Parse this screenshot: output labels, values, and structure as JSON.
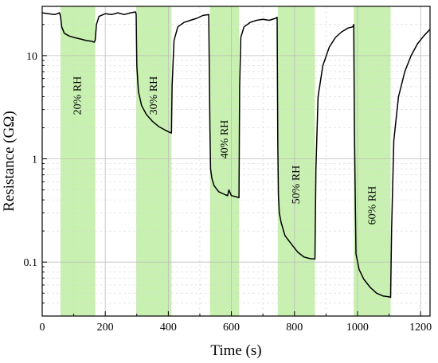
{
  "chart_data": {
    "type": "line",
    "xlabel": "Time (s)",
    "ylabel": "Resistance (GΩ)",
    "xlim": [
      0,
      1230
    ],
    "ylim": [
      0.03,
      30
    ],
    "yscale": "log",
    "grid": true,
    "x_ticks": [
      0,
      200,
      400,
      600,
      800,
      1000,
      1200
    ],
    "x_tick_labels": [
      "0",
      "200",
      "400",
      "600",
      "800",
      "1000",
      "1200"
    ],
    "y_ticks": [
      0.1,
      1,
      10
    ],
    "y_tick_labels": [
      "0.1",
      "1",
      "10"
    ],
    "band_color": "#c8f0b0",
    "line_color": "#000000",
    "bands": [
      {
        "label": "20% RH",
        "x_start": 58,
        "x_end": 168
      },
      {
        "label": "30% RH",
        "x_start": 298,
        "x_end": 410
      },
      {
        "label": "40% RH",
        "x_start": 532,
        "x_end": 624
      },
      {
        "label": "50% RH",
        "x_start": 747,
        "x_end": 865
      },
      {
        "label": "60% RH",
        "x_start": 988,
        "x_end": 1105
      }
    ],
    "series": [
      {
        "x": [
          0,
          20,
          40,
          55,
          58,
          62,
          70,
          85,
          100,
          120,
          140,
          155,
          165,
          168,
          172,
          180,
          200,
          220,
          240,
          260,
          280,
          296,
          298,
          300,
          305,
          315,
          330,
          350,
          370,
          390,
          405,
          410,
          412,
          418,
          430,
          450,
          470,
          490,
          510,
          528,
          532,
          534,
          538,
          545,
          560,
          580,
          588,
          592,
          600,
          615,
          624,
          626,
          630,
          640,
          660,
          680,
          700,
          720,
          740,
          745,
          747,
          749,
          752,
          758,
          770,
          790,
          810,
          830,
          850,
          863,
          865,
          868,
          875,
          890,
          910,
          930,
          950,
          970,
          985,
          988,
          990,
          995,
          1005,
          1020,
          1040,
          1060,
          1080,
          1100,
          1105,
          1108,
          1115,
          1130,
          1150,
          1170,
          1190,
          1210,
          1230
        ],
        "y": [
          26,
          25.5,
          25,
          26,
          24,
          19,
          16.5,
          15.5,
          15,
          14.5,
          14,
          13.8,
          13.5,
          14,
          20,
          24,
          25.5,
          25,
          26,
          25,
          26,
          26.5,
          25,
          8,
          4.5,
          3.3,
          2.7,
          2.3,
          2.05,
          1.9,
          1.8,
          1.78,
          5,
          14,
          19,
          21,
          22,
          23,
          24.5,
          25,
          2,
          0.8,
          0.65,
          0.55,
          0.48,
          0.45,
          0.44,
          0.5,
          0.44,
          0.43,
          0.42,
          5,
          15,
          19,
          21,
          22,
          22.5,
          22,
          23,
          23.5,
          1.5,
          0.45,
          0.3,
          0.24,
          0.18,
          0.15,
          0.125,
          0.112,
          0.108,
          0.107,
          0.107,
          0.8,
          4,
          8,
          12,
          15,
          17,
          18.5,
          19,
          20,
          2,
          0.12,
          0.085,
          0.068,
          0.057,
          0.05,
          0.047,
          0.046,
          0.0455,
          0.2,
          1.5,
          4,
          7,
          10,
          13,
          15.5,
          18
        ]
      }
    ]
  }
}
